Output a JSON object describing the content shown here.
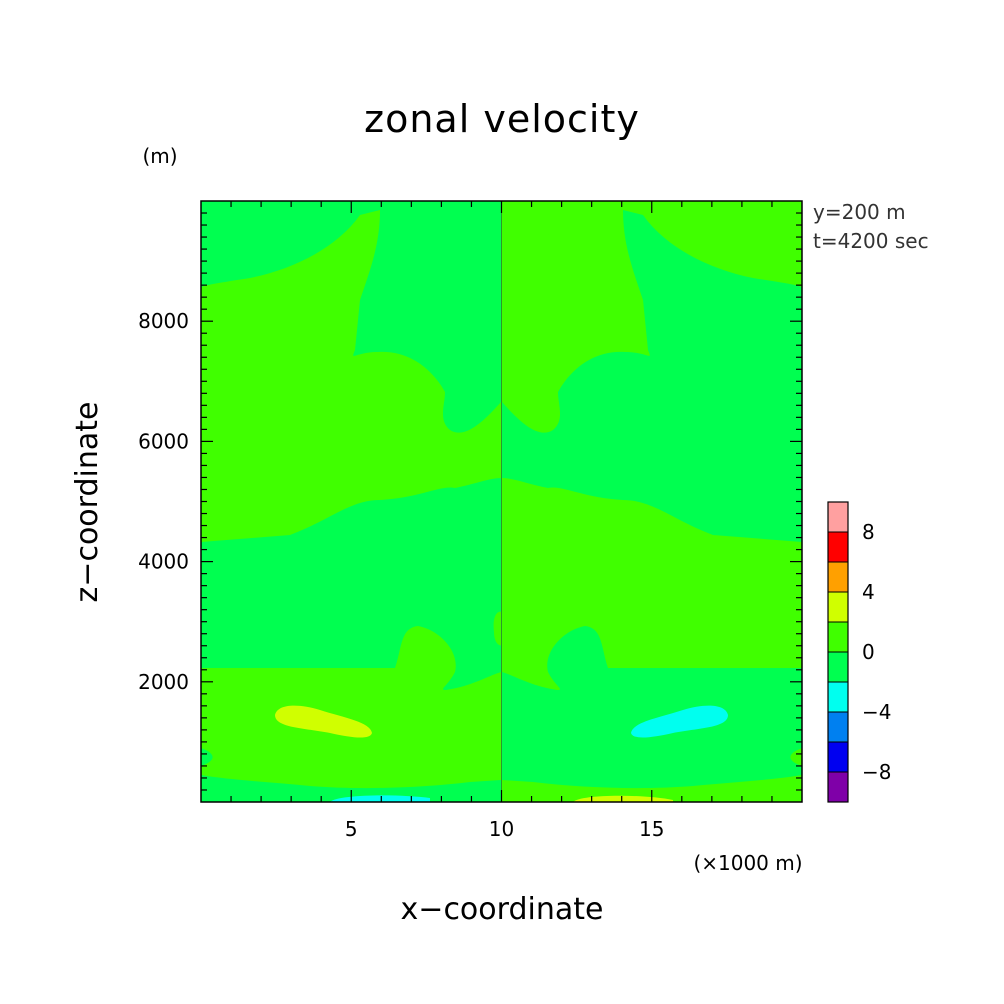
{
  "chart_data": {
    "type": "heatmap",
    "title": "zonal velocity",
    "xlabel": "x−coordinate",
    "ylabel": "z−coordinate",
    "x_unit": "(×1000 m)",
    "y_unit": "(m)",
    "xlim": [
      0,
      20
    ],
    "ylim": [
      0,
      10000
    ],
    "x_ticks": [
      5,
      10,
      15
    ],
    "x_tick_labels": [
      "5",
      "10",
      "15"
    ],
    "y_ticks": [
      2000,
      4000,
      6000,
      8000
    ],
    "y_tick_labels": [
      "2000",
      "4000",
      "6000",
      "8000"
    ],
    "annotations": [
      "y=200 m",
      "t=4200 sec"
    ],
    "colorbar": {
      "levels": [
        -10,
        -8,
        -6,
        -4,
        -2,
        0,
        2,
        4,
        6,
        8,
        10
      ],
      "colors": [
        "#7f00a8",
        "#0000f0",
        "#0080f0",
        "#00ffef",
        "#00ff50",
        "#40ff00",
        "#d0ff00",
        "#ffa000",
        "#ff0000",
        "#ffa0a0"
      ],
      "tick_values": [
        -8,
        -4,
        0,
        4,
        8
      ],
      "tick_labels": [
        "−8",
        "−4",
        "0",
        "4",
        "8"
      ]
    },
    "regions": [
      {
        "range": [
          -2,
          0
        ],
        "color": "#00ff50",
        "description": "background (left half and right-side lobes)"
      },
      {
        "range": [
          0,
          2
        ],
        "color": "#40ff00",
        "description": "background band regions"
      },
      {
        "range": [
          2,
          4
        ],
        "color": "#d0ff00",
        "description": "lobe near x=4, z=1400; band at surface near x=14"
      },
      {
        "range": [
          -4,
          -2
        ],
        "color": "#00ffef",
        "description": "lobe near x=16, z=1400; band at surface near x=6"
      }
    ],
    "grid": false,
    "legend": "colorbar right"
  }
}
